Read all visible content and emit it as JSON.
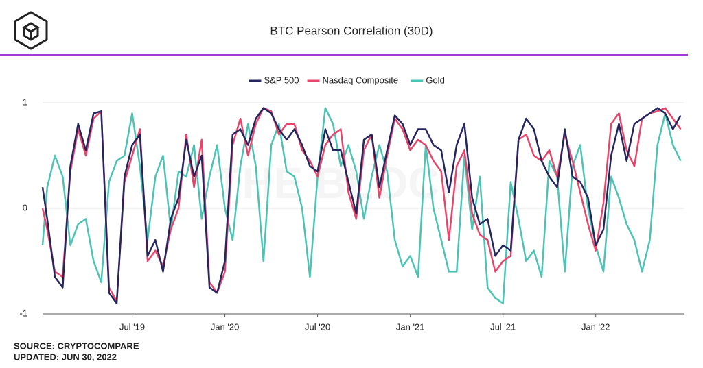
{
  "chart_data": {
    "type": "line",
    "title": "BTC Pearson Correlation (30D)",
    "watermark": "THE BLOCK",
    "source": "SOURCE: CRYPTOCOMPARE",
    "updated": "UPDATED: JUN 30, 2022",
    "x": [
      0.2,
      0.5,
      1,
      1.5,
      2,
      2.5,
      3,
      3.5,
      4,
      4.5,
      5,
      5.5,
      6,
      6.5,
      7,
      7.5,
      8,
      8.5,
      9,
      9.5,
      10,
      10.5,
      11,
      11.5,
      12,
      12.5,
      13,
      13.5,
      14,
      14.5,
      15,
      15.5,
      16,
      16.5,
      17,
      17.5,
      18,
      18.5,
      19,
      19.5,
      20,
      20.5,
      21,
      21.5,
      22,
      22.5,
      23,
      23.5,
      24,
      24.5,
      25,
      25.5,
      26,
      26.5,
      27,
      27.5,
      28,
      28.5,
      29,
      29.5,
      30,
      30.5,
      31,
      31.5,
      32,
      32.5,
      33,
      33.5,
      34,
      34.5,
      35,
      35.5,
      36,
      36.5,
      37,
      37.5,
      38,
      38.5,
      39,
      39.5,
      40,
      40.5,
      41,
      41.5
    ],
    "xlim": [
      0.2,
      41.7
    ],
    "xticks": [
      {
        "value": 6,
        "label": "Jul '19"
      },
      {
        "value": 12,
        "label": "Jan '20"
      },
      {
        "value": 18,
        "label": "Jul '20"
      },
      {
        "value": 24,
        "label": "Jan '21"
      },
      {
        "value": 30,
        "label": "Jul '21"
      },
      {
        "value": 36,
        "label": "Jan '22"
      }
    ],
    "ylim": [
      -1,
      1
    ],
    "yticks": [
      -1,
      0,
      1
    ],
    "grid": true,
    "legend": "top",
    "series": [
      {
        "name": "S&P 500",
        "color": "#26265e",
        "values": [
          0.2,
          -0.1,
          -0.65,
          -0.75,
          0.4,
          0.8,
          0.55,
          0.9,
          0.92,
          -0.8,
          -0.9,
          0.3,
          0.6,
          0.7,
          -0.45,
          -0.3,
          -0.6,
          -0.1,
          0.1,
          0.65,
          0.3,
          0.5,
          -0.75,
          -0.8,
          -0.5,
          0.7,
          0.75,
          0.6,
          0.85,
          0.95,
          0.9,
          0.75,
          0.65,
          0.75,
          0.6,
          0.4,
          0.35,
          0.75,
          0.55,
          0.55,
          0.25,
          -0.05,
          0.65,
          0.7,
          0.2,
          0.55,
          0.88,
          0.8,
          0.6,
          0.75,
          0.75,
          0.6,
          0.55,
          0.15,
          0.6,
          0.8,
          0.1,
          -0.15,
          -0.1,
          -0.45,
          -0.35,
          -0.4,
          0.65,
          0.85,
          0.75,
          0.45,
          0.3,
          0.2,
          0.75,
          0.3,
          0.25,
          0.1,
          -0.35,
          -0.2,
          0.5,
          0.8,
          0.45,
          0.8,
          0.85,
          0.9,
          0.95,
          0.9,
          0.75,
          0.88
        ]
      },
      {
        "name": "Nasdaq Composite",
        "color": "#e8456b",
        "values": [
          0.0,
          -0.2,
          -0.6,
          -0.65,
          0.35,
          0.75,
          0.5,
          0.85,
          0.92,
          -0.75,
          -0.88,
          0.25,
          0.5,
          0.75,
          -0.5,
          -0.4,
          -0.55,
          -0.2,
          0.0,
          0.7,
          0.2,
          0.65,
          -0.7,
          -0.8,
          -0.6,
          0.6,
          0.85,
          0.5,
          0.8,
          0.95,
          0.92,
          0.7,
          0.8,
          0.8,
          0.55,
          0.45,
          0.3,
          0.6,
          0.7,
          0.75,
          0.15,
          -0.1,
          0.55,
          0.7,
          0.1,
          0.5,
          0.85,
          0.75,
          0.55,
          0.65,
          0.6,
          0.45,
          0.35,
          -0.3,
          0.4,
          0.55,
          -0.05,
          -0.25,
          -0.3,
          -0.6,
          -0.5,
          -0.45,
          0.65,
          0.7,
          0.5,
          0.45,
          0.55,
          0.3,
          0.7,
          0.45,
          0.15,
          -0.15,
          -0.4,
          0.05,
          0.8,
          0.9,
          0.55,
          0.4,
          0.85,
          0.9,
          0.92,
          0.95,
          0.85,
          0.75
        ]
      },
      {
        "name": "Gold",
        "color": "#4cc3b4",
        "values": [
          -0.35,
          0.2,
          0.5,
          0.3,
          -0.35,
          -0.15,
          -0.1,
          -0.5,
          -0.7,
          0.25,
          0.45,
          0.5,
          0.9,
          0.4,
          -0.3,
          0.3,
          0.5,
          -0.2,
          0.35,
          0.3,
          0.6,
          -0.1,
          0.3,
          0.6,
          0.0,
          -0.3,
          0.4,
          0.8,
          0.4,
          -0.5,
          0.6,
          0.8,
          0.35,
          0.3,
          0.0,
          -0.65,
          0.3,
          0.95,
          0.8,
          0.4,
          0.6,
          0.35,
          -0.1,
          0.3,
          0.6,
          0.35,
          -0.3,
          -0.55,
          -0.45,
          -0.65,
          0.6,
          0.0,
          -0.3,
          -0.6,
          -0.6,
          0.5,
          -0.2,
          0.3,
          -0.75,
          -0.85,
          -0.9,
          0.25,
          -0.1,
          -0.5,
          -0.4,
          -0.65,
          0.45,
          0.3,
          -0.6,
          0.4,
          0.6,
          0.0,
          -0.35,
          -0.6,
          0.3,
          0.1,
          -0.15,
          -0.3,
          -0.6,
          -0.3,
          0.6,
          0.9,
          0.6,
          0.45
        ]
      }
    ]
  }
}
